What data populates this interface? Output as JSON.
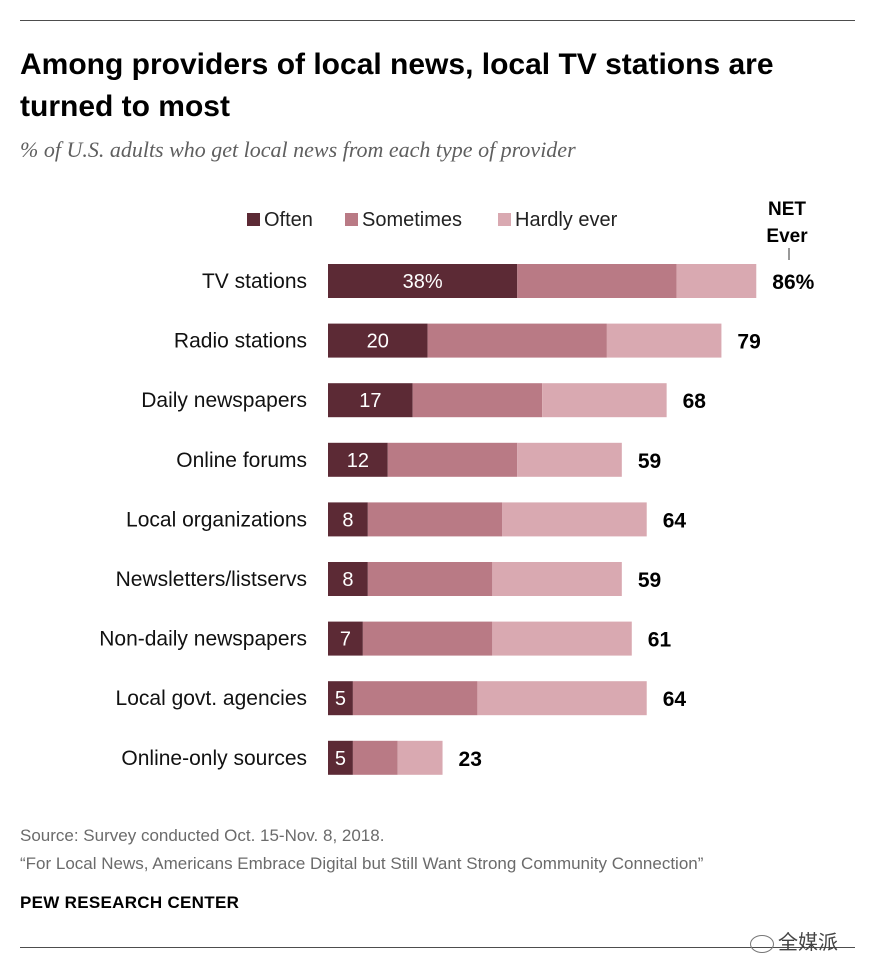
{
  "title": "Among providers of local news, local TV stations are turned to most",
  "subtitle": "% of U.S. adults who get local news from each type of provider",
  "footer": {
    "source": "Source: Survey conducted Oct. 15-Nov. 8, 2018.",
    "report": "“For Local News, Americans Embrace Digital but Still Want Strong Community Connection”",
    "org": "PEW RESEARCH CENTER",
    "watermark": "全媒派"
  },
  "colors": {
    "often": "#5c2a35",
    "sometimes": "#b97a85",
    "hardly": "#d9a9b1"
  },
  "chart_data": {
    "type": "bar",
    "orientation": "horizontal",
    "stacked": true,
    "categories": [
      "TV stations",
      "Radio stations",
      "Daily newspapers",
      "Online forums",
      "Local organizations",
      "Newsletters/listservs",
      "Non-daily newspapers",
      "Local govt. agencies",
      "Online-only sources"
    ],
    "series": [
      {
        "name": "Often",
        "values": [
          38,
          20,
          17,
          12,
          8,
          8,
          7,
          5,
          5
        ]
      },
      {
        "name": "Sometimes",
        "values": [
          32,
          36,
          26,
          26,
          27,
          25,
          26,
          25,
          9
        ]
      },
      {
        "name": "Hardly ever",
        "values": [
          16,
          23,
          25,
          21,
          29,
          26,
          28,
          34,
          9
        ]
      }
    ],
    "net": {
      "label_line1": "NET",
      "label_line2": "Ever",
      "values": [
        86,
        79,
        68,
        59,
        64,
        59,
        61,
        64,
        23
      ]
    },
    "value_labels": {
      "often": [
        "38%",
        "20",
        "17",
        "12",
        "8",
        "8",
        "7",
        "5",
        "5"
      ],
      "net": [
        "86%",
        "79",
        "68",
        "59",
        "64",
        "59",
        "61",
        "64",
        "23"
      ]
    },
    "legend_position": "top",
    "grid": false
  }
}
